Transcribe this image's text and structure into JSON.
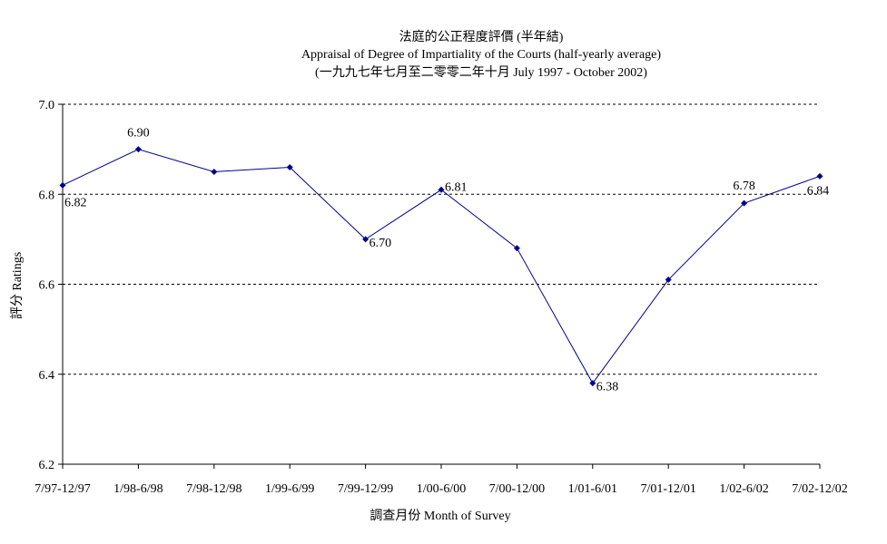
{
  "chart_data": {
    "type": "line",
    "title_lines": [
      "法庭的公正程度評價 (半年結)",
      "Appraisal of Degree of Impartiality of the Courts (half-yearly average)",
      "(一九九七年七月至二零零二年十月 July 1997 - October 2002)"
    ],
    "xlabel": "調查月份 Month of Survey",
    "ylabel": "評分 Ratings",
    "categories": [
      "7/97-12/97",
      "1/98-6/98",
      "7/98-12/98",
      "1/99-6/99",
      "7/99-12/99",
      "1/00-6/00",
      "7/00-12/00",
      "1/01-6/01",
      "7/01-12/01",
      "1/02-6/02",
      "7/02-12/02"
    ],
    "series": [
      {
        "values": [
          6.82,
          6.9,
          6.85,
          6.86,
          6.7,
          6.81,
          6.68,
          6.38,
          6.61,
          6.78,
          6.84
        ],
        "color": "#00008b"
      }
    ],
    "data_labels": [
      "6.82",
      "6.90",
      null,
      null,
      "6.70",
      "6.81",
      null,
      "6.38",
      null,
      "6.78",
      "6.84"
    ],
    "ylim": [
      6.2,
      7.0
    ],
    "yticks": [
      "7.0",
      "6.8",
      "6.6",
      "6.4",
      "6.2"
    ],
    "grid": "horizontal dashed",
    "legend": "none"
  }
}
